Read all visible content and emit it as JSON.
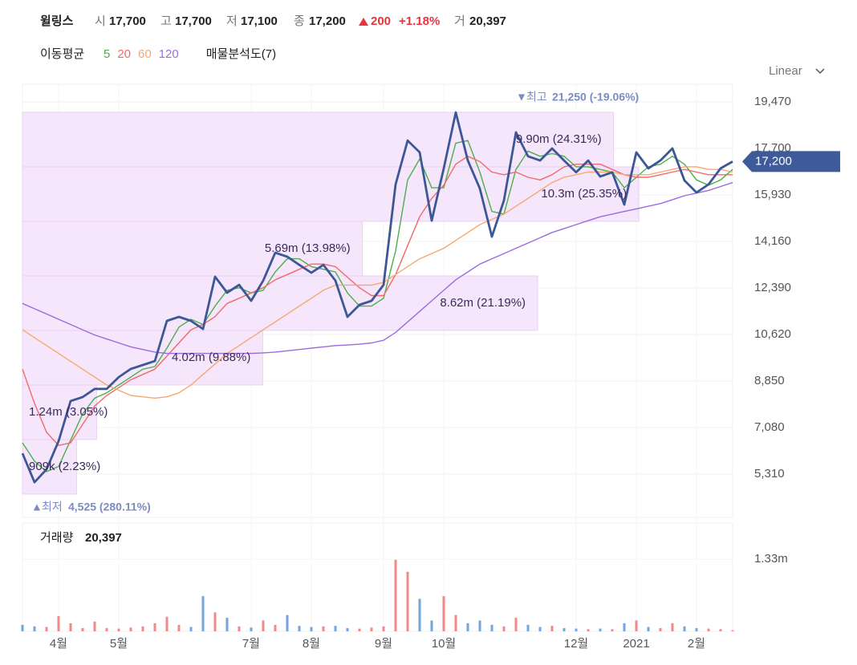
{
  "header": {
    "name": "윌링스",
    "items": [
      {
        "label": "시",
        "value": "17,700"
      },
      {
        "label": "고",
        "value": "17,700"
      },
      {
        "label": "저",
        "value": "17,100"
      },
      {
        "label": "종",
        "value": "17,200"
      }
    ],
    "change": "200",
    "change_pct": "+1.18%",
    "volume_item": {
      "label": "거",
      "value": "20,397"
    },
    "ma_label": "이동평균",
    "scale": "Linear"
  },
  "chart_data": {
    "type": "line",
    "categories": [
      null,
      null,
      null,
      "4월",
      null,
      null,
      null,
      null,
      "5월",
      null,
      null,
      null,
      null,
      null,
      null,
      null,
      null,
      null,
      null,
      "7월",
      null,
      null,
      null,
      null,
      "8월",
      null,
      null,
      null,
      null,
      null,
      "9월",
      null,
      null,
      null,
      null,
      "10월",
      null,
      null,
      null,
      null,
      null,
      null,
      null,
      null,
      null,
      null,
      "12월",
      null,
      null,
      null,
      null,
      "2021",
      null,
      null,
      null,
      null,
      "2월",
      null,
      null,
      null
    ],
    "series": [
      {
        "color": "#3b5796",
        "values": [
          6100,
          5000,
          5490,
          6560,
          8090,
          8240,
          8550,
          8550,
          9000,
          9310,
          9460,
          9610,
          11140,
          11290,
          11140,
          10830,
          12820,
          12210,
          12510,
          11900,
          12670,
          13730,
          13580,
          13270,
          12970,
          13270,
          12670,
          11290,
          11750,
          11900,
          12510,
          16330,
          18000,
          17550,
          14950,
          16940,
          19070,
          17240,
          16170,
          14340,
          15720,
          18310,
          17400,
          17240,
          17700,
          17240,
          16790,
          17240,
          16630,
          16790,
          15560,
          17550,
          16940,
          17240,
          17700,
          16480,
          16020,
          16330,
          16940,
          17200
        ]
      },
      {
        "name": "5",
        "color": "#4cae4c",
        "values": [
          6500,
          5800,
          5400,
          5600,
          6600,
          7600,
          8200,
          8400,
          8700,
          9000,
          9300,
          9400,
          10100,
          10900,
          11200,
          11000,
          11700,
          12300,
          12400,
          12200,
          12300,
          13000,
          13500,
          13500,
          13200,
          13100,
          13000,
          12200,
          11700,
          11700,
          12000,
          13800,
          16500,
          17300,
          16200,
          16200,
          17900,
          18000,
          16800,
          15300,
          15200,
          16900,
          17600,
          17400,
          17500,
          17400,
          17000,
          17000,
          16900,
          16800,
          16200,
          16600,
          17000,
          17100,
          17400,
          17100,
          16500,
          16300,
          16500,
          16900
        ]
      },
      {
        "name": "20",
        "color": "#f06a6a",
        "values": [
          9300,
          8000,
          6900,
          6400,
          6500,
          7200,
          7900,
          8300,
          8600,
          8900,
          9100,
          9300,
          9800,
          10300,
          10800,
          11000,
          11300,
          11800,
          12000,
          12200,
          12400,
          12700,
          12900,
          13100,
          13300,
          13300,
          13200,
          12800,
          12400,
          12100,
          12100,
          12900,
          14000,
          15100,
          15800,
          16300,
          17100,
          17400,
          17200,
          16800,
          16700,
          16800,
          16600,
          16500,
          16700,
          17000,
          17100,
          17100,
          17100,
          16900,
          16700,
          16600,
          16600,
          16700,
          16800,
          16900,
          16800,
          16700,
          16700,
          16700
        ]
      },
      {
        "name": "60",
        "color": "#f5a86e",
        "values": [
          10800,
          10500,
          10200,
          9900,
          9600,
          9300,
          9000,
          8700,
          8500,
          8300,
          8250,
          8200,
          8250,
          8400,
          8700,
          9100,
          9500,
          9900,
          10200,
          10500,
          10800,
          11100,
          11400,
          11700,
          12000,
          12300,
          12500,
          12500,
          12500,
          12500,
          12600,
          12900,
          13200,
          13500,
          13700,
          13900,
          14200,
          14500,
          14800,
          15000,
          15200,
          15500,
          15800,
          16100,
          16400,
          16600,
          16700,
          16800,
          16800,
          16800,
          16700,
          16700,
          16700,
          16800,
          16900,
          17000,
          17000,
          16900,
          16900,
          16800
        ]
      },
      {
        "name": "120",
        "color": "#9b6be0",
        "values": [
          11800,
          11600,
          11400,
          11200,
          11000,
          10800,
          10600,
          10450,
          10300,
          10150,
          10050,
          9950,
          9900,
          9900,
          9900,
          9900,
          9900,
          9900,
          9900,
          9900,
          9920,
          9950,
          10000,
          10050,
          10100,
          10150,
          10200,
          10220,
          10250,
          10300,
          10400,
          10700,
          11100,
          11500,
          11900,
          12300,
          12700,
          13000,
          13300,
          13500,
          13700,
          13900,
          14100,
          14300,
          14500,
          14650,
          14800,
          14950,
          15100,
          15200,
          15300,
          15400,
          15500,
          15600,
          15750,
          15900,
          16000,
          16100,
          16250,
          16400
        ]
      }
    ],
    "ylim": [
      3662,
      20141
    ],
    "yticks": [
      {
        "value": 5310,
        "label": "5,310"
      },
      {
        "value": 7080,
        "label": "7,080"
      },
      {
        "value": 8850,
        "label": "8,850"
      },
      {
        "value": 10620,
        "label": "10,620"
      },
      {
        "value": 12390,
        "label": "12,390"
      },
      {
        "value": 14160,
        "label": "14,160"
      },
      {
        "value": 15930,
        "label": "15,930"
      },
      {
        "value": 17700,
        "label": "17,700"
      },
      {
        "value": 19470,
        "label": "19,470"
      }
    ],
    "grid": true,
    "last_price": {
      "value": 17200,
      "label": "17,200"
    },
    "annotations": [
      {
        "text": "최고",
        "label": "21,250 (-19.06%)"
      },
      {
        "text": "최저",
        "label": "4,525 (280.11%)"
      }
    ],
    "volume_profile": {
      "title": "매물분석도(7)",
      "color": "#f5e6fb",
      "bounds": [
        4550,
        6625,
        8700,
        10775,
        12850,
        14925,
        17000,
        19075
      ],
      "volumes": [
        909000,
        1240000,
        4020000,
        8620000,
        5690000,
        10300000,
        9900000
      ],
      "percents": [
        2.23,
        3.05,
        9.88,
        21.19,
        13.98,
        25.35,
        24.31
      ],
      "value_labels": [
        "909k (2.23%)",
        "1.24m (3.05%)",
        "4.02m (9.88%)",
        "8.62m (21.19%)",
        "5.69m (13.98%)",
        "10.3m (25.35%)",
        "9.90m (24.31%)"
      ]
    },
    "volume": {
      "label": "거래량",
      "last_label": "20,397",
      "up_color": "#f08a8a",
      "down_color": "#72a6dc",
      "values": [
        120000,
        90000,
        80000,
        280000,
        150000,
        60000,
        180000,
        60000,
        50000,
        70000,
        90000,
        150000,
        270000,
        120000,
        80000,
        650000,
        350000,
        250000,
        90000,
        70000,
        200000,
        120000,
        300000,
        100000,
        80000,
        90000,
        100000,
        60000,
        50000,
        70000,
        90000,
        1320000,
        1100000,
        600000,
        200000,
        650000,
        300000,
        150000,
        200000,
        120000,
        90000,
        250000,
        120000,
        80000,
        100000,
        60000,
        50000,
        40000,
        50000,
        40000,
        150000,
        200000,
        80000,
        60000,
        150000,
        90000,
        60000,
        50000,
        40000,
        20397
      ],
      "ylim": [
        0,
        2000000
      ],
      "yticks": [
        {
          "value": 1330000,
          "label": "1.33m"
        }
      ]
    }
  }
}
